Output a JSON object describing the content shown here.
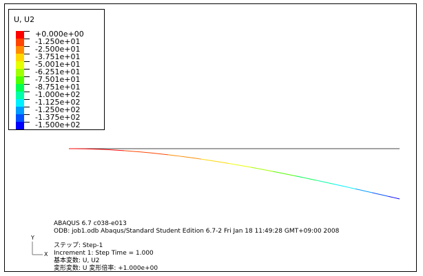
{
  "legend": {
    "title": "U, U2",
    "entries": [
      {
        "label": "+0.000e+00",
        "color": "#ff0000"
      },
      {
        "label": "-1.250e+01",
        "color": "#ff4500"
      },
      {
        "label": "-2.500e+01",
        "color": "#ff8c00"
      },
      {
        "label": "-3.751e+01",
        "color": "#ffd700"
      },
      {
        "label": "-5.001e+01",
        "color": "#e6ff00"
      },
      {
        "label": "-6.251e+01",
        "color": "#a0ff00"
      },
      {
        "label": "-7.501e+01",
        "color": "#50ff00"
      },
      {
        "label": "-8.751e+01",
        "color": "#00ff50"
      },
      {
        "label": "-1.000e+02",
        "color": "#00ffa8"
      },
      {
        "label": "-1.125e+02",
        "color": "#00f0ff"
      },
      {
        "label": "-1.250e+02",
        "color": "#009cff"
      },
      {
        "label": "-1.375e+02",
        "color": "#0050ff"
      },
      {
        "label": "-1.500e+02",
        "color": "#0000ff"
      }
    ]
  },
  "info": {
    "version": "ABAQUS 6.7 c038-e013",
    "odb": "ODB: job1.odb    Abaqus/Standard Student Edition 6.7-2    Fri Jan 18 11:49:28 GMT+09:00 2008",
    "step": "ステップ: Step-1",
    "increment": "Increment      1: Step Time =     1.000",
    "primary_var": "基本変数: U, U2",
    "deformed_var": "変形変数: U   変形倍率: +1.000e+00"
  },
  "triad": {
    "y": "Y",
    "x": "X"
  }
}
